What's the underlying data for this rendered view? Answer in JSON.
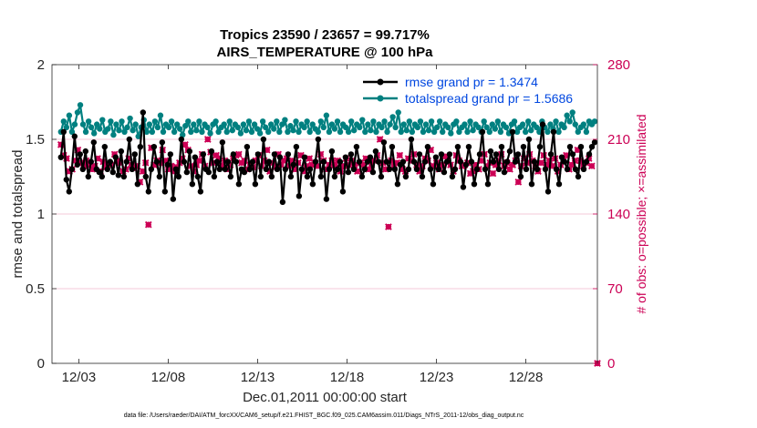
{
  "chart_data": {
    "type": "line",
    "title_line1": "Tropics 23590 / 23657 = 99.717%",
    "title_line2": "AIRS_TEMPERATURE @ 100 hPa",
    "xlabel": "Dec.01,2011 00:00:00 start",
    "ylabel": "rmse and totalspread",
    "ylabel_right": "# of obs: o=possible; ×=assimilated",
    "x_range_days": [
      0.5,
      31.0
    ],
    "ylim": [
      0,
      2
    ],
    "ylim_right": [
      0,
      280
    ],
    "x_ticks": [
      {
        "day": 2,
        "label": "12/03"
      },
      {
        "day": 7,
        "label": "12/08"
      },
      {
        "day": 12,
        "label": "12/13"
      },
      {
        "day": 17,
        "label": "12/18"
      },
      {
        "day": 22,
        "label": "12/23"
      },
      {
        "day": 27,
        "label": "12/28"
      }
    ],
    "y_ticks": [
      "0",
      "0.5",
      "1",
      "1.5",
      "2"
    ],
    "y_ticks_right": [
      "0",
      "70",
      "140",
      "210",
      "280"
    ],
    "y_tick_values": [
      0,
      0.5,
      1,
      1.5,
      2
    ],
    "y_tick_values_right": [
      0,
      70,
      140,
      210,
      280
    ],
    "grid_right_y": [
      70,
      140,
      210
    ],
    "legend_position": "top-right",
    "footer": "data file: /Users/raeder/DAI/ATM_forcXX/CAM6_setup/f.e21.FHIST_BGC.f09_025.CAM6assim.011/Diags_NTrS_2011-12/obs_diag_output.nc",
    "series": [
      {
        "name": "rmse",
        "legend": "rmse grand pr = 1.3474",
        "color": "#000000",
        "marker": "circle",
        "axis": "left",
        "values": [
          1.38,
          1.55,
          1.23,
          1.15,
          1.3,
          1.52,
          1.33,
          1.4,
          1.3,
          1.42,
          1.25,
          1.35,
          1.48,
          1.3,
          1.28,
          1.25,
          1.45,
          1.3,
          1.35,
          1.28,
          1.38,
          1.26,
          1.42,
          1.25,
          1.35,
          1.5,
          1.3,
          1.4,
          1.2,
          1.45,
          1.68,
          1.25,
          1.15,
          1.3,
          1.45,
          1.35,
          1.25,
          1.48,
          1.15,
          1.33,
          1.4,
          1.1,
          1.3,
          1.25,
          1.5,
          1.35,
          1.28,
          1.42,
          1.2,
          1.38,
          1.25,
          1.15,
          1.4,
          1.3,
          1.28,
          1.42,
          1.25,
          1.35,
          1.3,
          1.48,
          1.3,
          1.35,
          1.25,
          1.4,
          1.35,
          1.2,
          1.3,
          1.28,
          1.45,
          1.3,
          1.35,
          1.2,
          1.4,
          1.25,
          1.5,
          1.3,
          1.35,
          1.25,
          1.4,
          1.3,
          1.38,
          1.08,
          1.3,
          1.4,
          1.25,
          1.33,
          1.45,
          1.12,
          1.3,
          1.38,
          1.25,
          1.3,
          1.2,
          1.35,
          1.5,
          1.25,
          1.35,
          1.1,
          1.3,
          1.42,
          1.25,
          1.3,
          1.35,
          1.15,
          1.38,
          1.28,
          1.4,
          1.3,
          1.45,
          1.35,
          1.25,
          1.3,
          1.35,
          1.38,
          1.28,
          1.42,
          1.35,
          1.25,
          1.48,
          1.35,
          1.3,
          1.45,
          1.3,
          1.2,
          1.33,
          1.35,
          1.25,
          1.3,
          1.5,
          1.35,
          1.3,
          1.4,
          1.25,
          1.35,
          1.45,
          1.3,
          1.2,
          1.38,
          1.3,
          1.4,
          1.28,
          1.35,
          1.4,
          1.25,
          1.3,
          1.45,
          1.35,
          1.18,
          1.33,
          1.45,
          1.35,
          1.2,
          1.3,
          1.4,
          1.55,
          1.3,
          1.2,
          1.42,
          1.35,
          1.4,
          1.3,
          1.45,
          1.28,
          1.35,
          1.42,
          1.55,
          1.35,
          1.4,
          1.25,
          1.45,
          1.3,
          1.5,
          1.2,
          1.35,
          1.3,
          1.45,
          1.6,
          1.3,
          1.15,
          1.4,
          1.55,
          1.3,
          1.2,
          1.38,
          1.35,
          1.3,
          1.45,
          1.4,
          1.3,
          1.25,
          1.45,
          1.3,
          1.35,
          1.4,
          1.45,
          1.48
        ]
      },
      {
        "name": "totalspread",
        "legend": "totalspread grand pr = 1.5686",
        "color": "#008080",
        "marker": "circle",
        "axis": "left",
        "values": [
          1.55,
          1.62,
          1.58,
          1.66,
          1.55,
          1.6,
          1.68,
          1.73,
          1.6,
          1.55,
          1.62,
          1.58,
          1.54,
          1.6,
          1.57,
          1.63,
          1.55,
          1.57,
          1.62,
          1.53,
          1.6,
          1.56,
          1.62,
          1.55,
          1.58,
          1.64,
          1.56,
          1.6,
          1.52,
          1.58,
          1.63,
          1.55,
          1.6,
          1.55,
          1.62,
          1.58,
          1.66,
          1.55,
          1.6,
          1.58,
          1.62,
          1.55,
          1.6,
          1.57,
          1.53,
          1.59,
          1.62,
          1.55,
          1.6,
          1.56,
          1.62,
          1.55,
          1.6,
          1.58,
          1.54,
          1.6,
          1.62,
          1.55,
          1.58,
          1.6,
          1.55,
          1.62,
          1.56,
          1.6,
          1.58,
          1.54,
          1.6,
          1.56,
          1.62,
          1.55,
          1.6,
          1.57,
          1.54,
          1.62,
          1.58,
          1.55,
          1.6,
          1.57,
          1.62,
          1.55,
          1.6,
          1.63,
          1.55,
          1.59,
          1.56,
          1.62,
          1.55,
          1.6,
          1.58,
          1.62,
          1.55,
          1.6,
          1.57,
          1.55,
          1.62,
          1.58,
          1.66,
          1.55,
          1.6,
          1.57,
          1.62,
          1.55,
          1.6,
          1.58,
          1.55,
          1.62,
          1.56,
          1.6,
          1.58,
          1.63,
          1.55,
          1.6,
          1.56,
          1.62,
          1.55,
          1.6,
          1.58,
          1.62,
          1.55,
          1.6,
          1.65,
          1.58,
          1.68,
          1.55,
          1.6,
          1.56,
          1.62,
          1.55,
          1.6,
          1.58,
          1.62,
          1.55,
          1.6,
          1.56,
          1.62,
          1.55,
          1.58,
          1.62,
          1.55,
          1.6,
          1.58,
          1.54,
          1.6,
          1.62,
          1.55,
          1.58,
          1.6,
          1.55,
          1.62,
          1.56,
          1.6,
          1.58,
          1.55,
          1.62,
          1.58,
          1.55,
          1.6,
          1.57,
          1.62,
          1.55,
          1.6,
          1.58,
          1.54,
          1.6,
          1.62,
          1.55,
          1.58,
          1.6,
          1.55,
          1.62,
          1.56,
          1.6,
          1.58,
          1.55,
          1.62,
          1.58,
          1.55,
          1.6,
          1.57,
          1.62,
          1.55,
          1.6,
          1.58,
          1.66,
          1.62,
          1.68,
          1.6,
          1.55,
          1.58,
          1.6,
          1.55,
          1.62,
          1.6,
          1.62
        ]
      },
      {
        "name": "possible_obs",
        "color": "#cc0055",
        "marker": "circle",
        "axis": "right",
        "values": [
          205,
          195,
          192,
          180,
          182,
          190,
          200,
          188,
          185,
          190,
          186,
          182,
          185,
          192,
          180,
          189,
          184,
          186,
          186,
          196,
          190,
          188,
          180,
          182,
          192,
          186,
          183,
          185,
          170,
          180,
          188,
          130,
          202,
          186,
          190,
          188,
          200,
          190,
          182,
          185,
          180,
          184,
          188,
          192,
          205,
          200,
          185,
          180,
          186,
          190,
          196,
          185,
          210,
          198,
          188,
          195,
          192,
          185,
          190,
          182,
          186,
          192,
          195,
          196,
          188,
          190,
          182,
          186,
          184,
          190,
          195,
          185,
          190,
          200,
          180,
          188,
          184,
          196,
          186,
          190,
          192,
          185,
          190,
          182,
          188,
          195,
          180,
          185,
          192,
          186,
          188,
          185,
          196,
          190,
          182,
          186,
          190,
          186,
          190,
          180,
          185,
          192,
          186,
          190,
          186,
          180,
          188,
          186,
          192,
          182,
          186,
          190,
          195,
          210,
          188,
          182,
          128,
          190,
          186,
          188,
          195,
          182,
          180,
          192,
          190,
          196,
          186,
          180,
          185,
          192,
          190,
          200,
          185,
          188,
          182,
          186,
          194,
          190,
          186,
          180,
          195,
          190,
          185,
          186,
          188,
          178,
          180,
          186,
          182,
          190,
          196,
          185,
          188,
          178,
          186,
          190,
          196,
          185,
          188,
          182,
          186,
          190,
          170,
          185,
          192,
          188,
          196,
          190,
          185,
          180,
          188,
          195,
          186,
          190,
          185,
          192,
          180,
          186,
          190,
          195,
          182,
          186,
          190,
          200,
          190,
          185,
          188,
          192,
          185,
          0
        ]
      },
      {
        "name": "assimilated_obs",
        "color": "#cc0055",
        "marker": "x",
        "axis": "right",
        "values": [
          205,
          195,
          192,
          180,
          182,
          190,
          200,
          188,
          185,
          190,
          186,
          182,
          185,
          192,
          180,
          189,
          184,
          186,
          186,
          196,
          190,
          188,
          180,
          182,
          192,
          186,
          183,
          185,
          170,
          180,
          188,
          130,
          202,
          186,
          190,
          188,
          200,
          190,
          182,
          185,
          180,
          184,
          188,
          192,
          205,
          200,
          185,
          180,
          186,
          190,
          196,
          185,
          210,
          198,
          188,
          195,
          192,
          185,
          190,
          182,
          186,
          192,
          195,
          196,
          188,
          190,
          182,
          186,
          184,
          190,
          195,
          185,
          190,
          200,
          180,
          188,
          184,
          196,
          186,
          190,
          192,
          185,
          190,
          182,
          188,
          195,
          180,
          185,
          192,
          186,
          188,
          185,
          196,
          190,
          182,
          186,
          190,
          186,
          190,
          180,
          185,
          192,
          186,
          190,
          186,
          180,
          188,
          186,
          192,
          182,
          186,
          190,
          195,
          210,
          188,
          182,
          128,
          190,
          186,
          188,
          195,
          182,
          180,
          192,
          190,
          196,
          186,
          180,
          185,
          192,
          190,
          200,
          185,
          188,
          182,
          186,
          194,
          190,
          186,
          180,
          195,
          190,
          185,
          186,
          188,
          178,
          180,
          186,
          182,
          190,
          196,
          185,
          188,
          178,
          186,
          190,
          196,
          185,
          188,
          182,
          186,
          190,
          170,
          185,
          192,
          188,
          196,
          190,
          185,
          180,
          188,
          195,
          186,
          190,
          185,
          192,
          180,
          186,
          190,
          195,
          182,
          186,
          190,
          200,
          190,
          185,
          188,
          192,
          185,
          0
        ]
      }
    ]
  }
}
